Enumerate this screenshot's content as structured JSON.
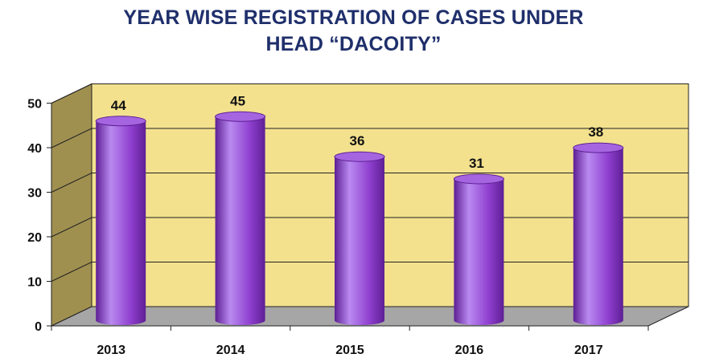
{
  "title_lines": [
    "YEAR WISE REGISTRATION OF CASES UNDER",
    "HEAD  “DACOITY”"
  ],
  "colors": {
    "title": "#1f2f6b",
    "wall": "#f3e18e",
    "side_wall": "#a09050",
    "floor": "#a6a6a6",
    "bar_main": "#8f3fcf",
    "bar_light": "#b98af0",
    "bar_dark": "#5e1f94",
    "bar_top": "#a565e0"
  },
  "chart_data": {
    "type": "bar",
    "style": "3d-cylinder",
    "title": "YEAR WISE REGISTRATION OF CASES UNDER HEAD “DACOITY”",
    "categories": [
      "2013",
      "2014",
      "2015",
      "2016",
      "2017"
    ],
    "values": [
      44,
      45,
      36,
      31,
      38
    ],
    "data_labels": [
      "44",
      "45",
      "36",
      "31",
      "38"
    ],
    "ylim": [
      0,
      50
    ],
    "yticks": [
      0,
      10,
      20,
      30,
      40,
      50
    ],
    "ytick_labels": [
      "0",
      "10",
      "20",
      "30",
      "40",
      "50"
    ],
    "grid": true,
    "legend": "none"
  }
}
